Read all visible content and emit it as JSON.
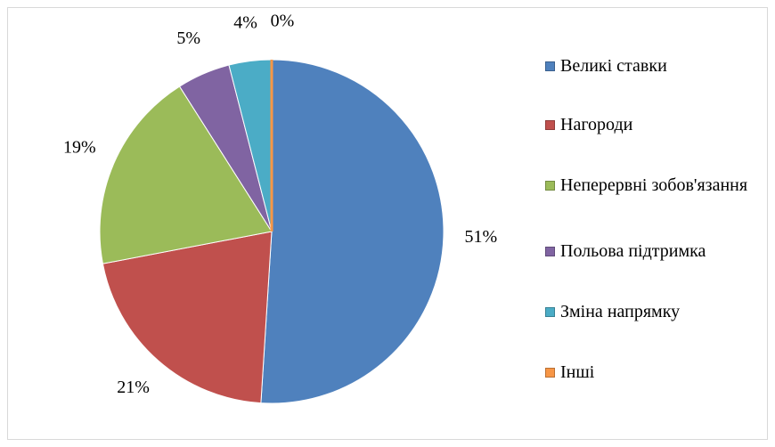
{
  "chart_data": {
    "type": "pie",
    "categories": [
      "Великі ставки",
      "Нагороди",
      "Неперервні зобов'язання",
      "Польова підтримка",
      "Зміна напрямку",
      "Інші"
    ],
    "values": [
      51,
      21,
      19,
      5,
      4,
      0
    ],
    "value_labels": [
      "51%",
      "21%",
      "19%",
      "5%",
      "4%",
      "0%"
    ],
    "colors": [
      "#4f81bd",
      "#c0504d",
      "#9bbb59",
      "#8064a2",
      "#4bacc6",
      "#f79646"
    ],
    "legend": "right"
  }
}
